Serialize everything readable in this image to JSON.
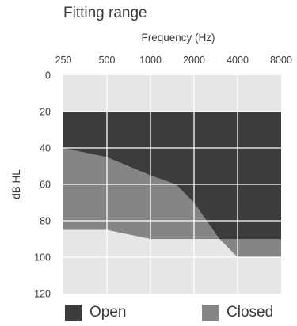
{
  "chart_data": {
    "type": "area",
    "title": "Fitting range",
    "xlabel": "Frequency (Hz)",
    "ylabel": "dB HL",
    "x_scale": "log",
    "x_ticks": [
      250,
      500,
      1000,
      2000,
      4000,
      8000
    ],
    "x_tick_labels": [
      "250",
      "500",
      "1000",
      "2000",
      "4000",
      "8000"
    ],
    "y_ticks": [
      0,
      20,
      40,
      60,
      80,
      100,
      120
    ],
    "y_tick_labels": [
      "0",
      "20",
      "40",
      "60",
      "80",
      "100",
      "120"
    ],
    "xlim": [
      250,
      8000
    ],
    "ylim": [
      0,
      120
    ],
    "y_inverted": true,
    "grid": true,
    "legend_position": "bottom",
    "colors": {
      "background": "#e6e6e6",
      "open": "#3c3c3c",
      "closed": "#858585",
      "grid": "#ffffff"
    },
    "series": [
      {
        "name": "Open",
        "upper": {
          "x": [
            250,
            8000
          ],
          "y": [
            20,
            20
          ]
        },
        "lower": {
          "x": [
            250,
            3000,
            8000
          ],
          "y": [
            40,
            90,
            90
          ]
        }
      },
      {
        "name": "Closed",
        "upper": {
          "x": [
            250,
            500,
            1000,
            1500,
            2000,
            3000,
            4000,
            8000
          ],
          "y": [
            40,
            45,
            55,
            60,
            70,
            90,
            100,
            100
          ]
        },
        "lower": {
          "x": [
            250,
            500,
            1000,
            8000
          ],
          "y": [
            85,
            85,
            90,
            90
          ]
        }
      }
    ]
  }
}
